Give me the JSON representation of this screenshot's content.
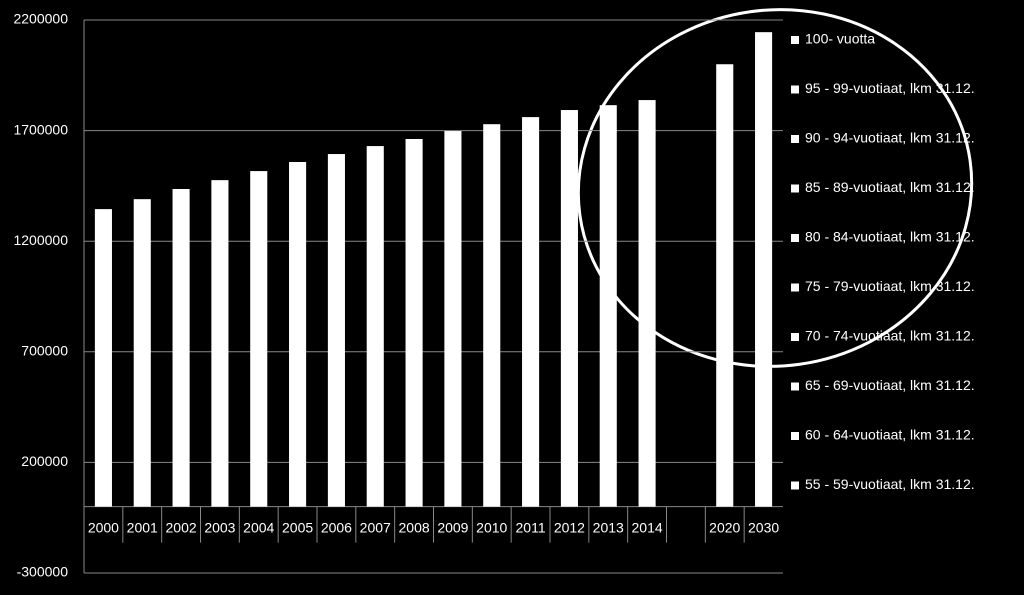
{
  "chart_data": {
    "type": "bar",
    "categories": [
      "2000",
      "2001",
      "2002",
      "2003",
      "2004",
      "2005",
      "2006",
      "2007",
      "2008",
      "2009",
      "2010",
      "2011",
      "2012",
      "2013",
      "2014",
      null,
      "2020",
      "2030"
    ],
    "values": [
      1345000,
      1390000,
      1436000,
      1476000,
      1517000,
      1558000,
      1594000,
      1630000,
      1662000,
      1698000,
      1729000,
      1761000,
      1793000,
      1815000,
      1838000,
      null,
      2000000,
      2145000
    ],
    "color": "#ffffff",
    "legend": [
      "100- vuotta",
      "95 - 99-vuotiaat, lkm 31.12.",
      "90 - 94-vuotiaat, lkm 31.12.",
      "85 - 89-vuotiaat, lkm 31.12.",
      "80 - 84-vuotiaat, lkm 31.12.",
      "75 - 79-vuotiaat, lkm 31.12.",
      "70 - 74-vuotiaat, lkm 31.12.",
      "65 - 69-vuotiaat, lkm 31.12.",
      "60 - 64-vuotiaat, lkm 31.12.",
      "55 - 59-vuotiaat, lkm 31.12."
    ],
    "ylim": [
      -300000,
      2200000
    ],
    "yticks": [
      -300000,
      200000,
      700000,
      1200000,
      1700000,
      2200000
    ],
    "grid": true
  }
}
